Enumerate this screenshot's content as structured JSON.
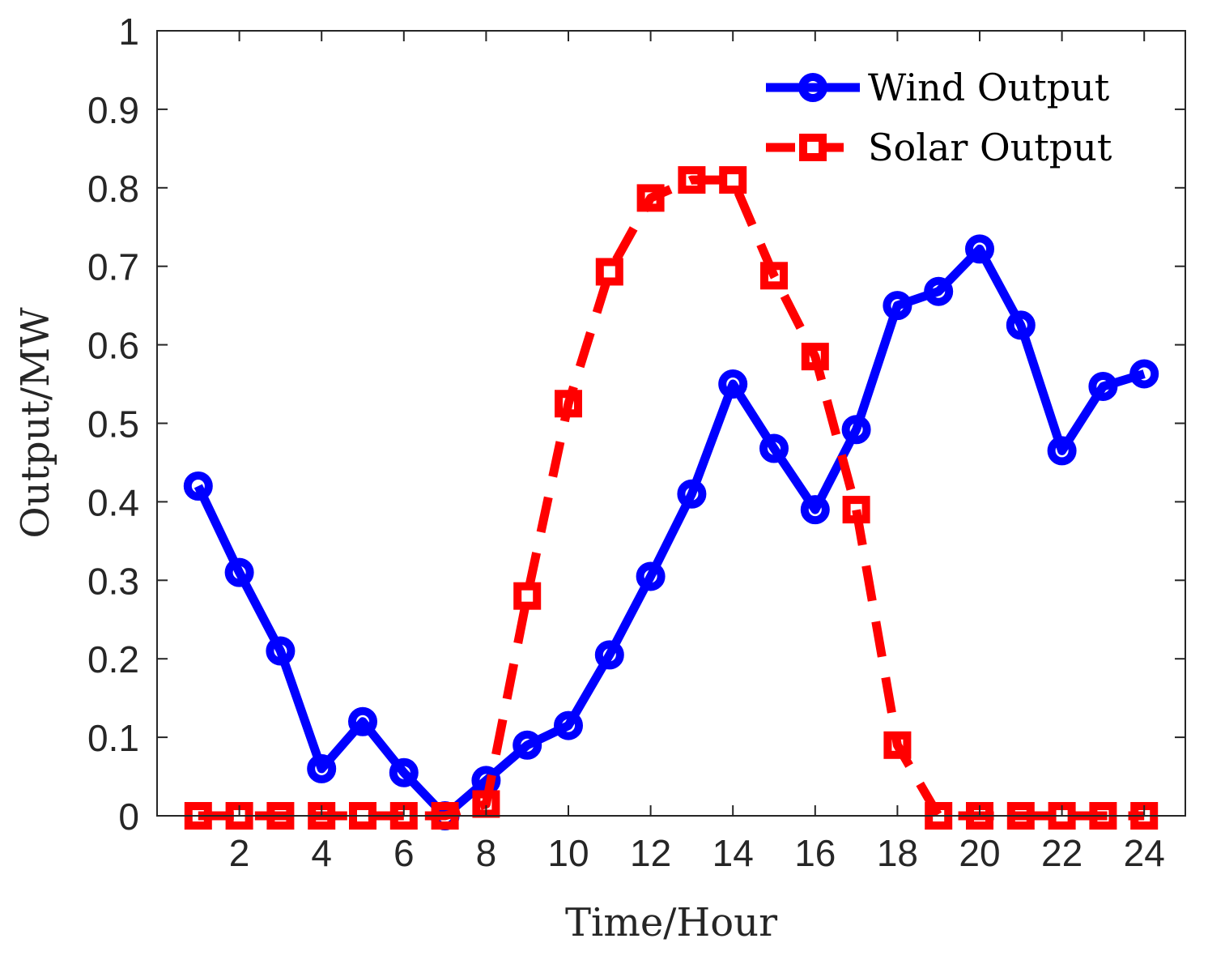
{
  "chart_data": {
    "type": "line",
    "title": "",
    "xlabel": "Time/Hour",
    "ylabel": "Output/MW",
    "xlim": [
      0,
      25
    ],
    "ylim": [
      0,
      1
    ],
    "xticks": [
      2,
      4,
      6,
      8,
      10,
      12,
      14,
      16,
      18,
      20,
      22,
      24
    ],
    "xtick_labels": [
      "2",
      "4",
      "6",
      "8",
      "10",
      "12",
      "14",
      "16",
      "18",
      "20",
      "22",
      "24"
    ],
    "yticks": [
      0,
      0.1,
      0.2,
      0.3,
      0.4,
      0.5,
      0.6,
      0.7,
      0.8,
      0.9,
      1
    ],
    "ytick_labels": [
      "0",
      "0.1",
      "0.2",
      "0.3",
      "0.4",
      "0.5",
      "0.6",
      "0.7",
      "0.8",
      "0.9",
      "1"
    ],
    "grid": false,
    "legend_position": "top-right",
    "x": [
      1,
      2,
      3,
      4,
      5,
      6,
      7,
      8,
      9,
      10,
      11,
      12,
      13,
      14,
      15,
      16,
      17,
      18,
      19,
      20,
      21,
      22,
      23,
      24
    ],
    "series": [
      {
        "name": "Wind Output",
        "color": "#0000ff",
        "style": "solid",
        "marker": "circle",
        "values": [
          0.42,
          0.31,
          0.21,
          0.06,
          0.12,
          0.055,
          0.0,
          0.045,
          0.09,
          0.115,
          0.205,
          0.305,
          0.41,
          0.55,
          0.468,
          0.39,
          0.492,
          0.65,
          0.668,
          0.722,
          0.625,
          0.465,
          0.547,
          0.563
        ]
      },
      {
        "name": "Solar Output",
        "color": "#ff0000",
        "style": "dashed",
        "marker": "square",
        "values": [
          0,
          0,
          0,
          0,
          0,
          0,
          0,
          0.015,
          0.28,
          0.525,
          0.693,
          0.787,
          0.81,
          0.81,
          0.688,
          0.585,
          0.39,
          0.09,
          0,
          0,
          0,
          0,
          0,
          0
        ]
      }
    ]
  }
}
